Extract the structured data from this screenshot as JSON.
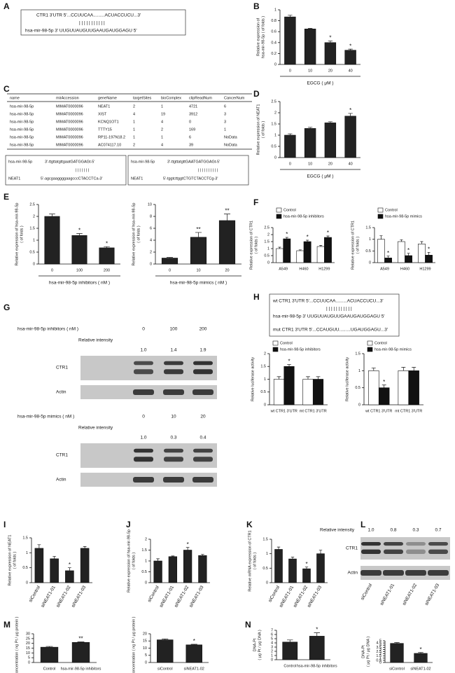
{
  "panel_labels": [
    "A",
    "B",
    "C",
    "D",
    "E",
    "F",
    "G",
    "H",
    "I",
    "J",
    "K",
    "L",
    "M",
    "N"
  ],
  "sequences": {
    "A": {
      "target": "CTR1 3'UTR 5'...CCUUCAA.........ACUACCUCU...3'",
      "pairs": "| | |     | | | | | | | |",
      "mirna": "hsa-mir-98-5p 3' UUGUUAUGUUGAAUGAUGGAGU 5'"
    },
    "C1": {
      "mirna_name": "hsa-mir-98-5p",
      "mirna": "3'-ttgttatgttgaatGATGGAGt-5'",
      "pairs": "| | | | | | |",
      "target_name": "NEAT1",
      "target": "5'-agcgaaggggaagcccCTACCTCa-3'"
    },
    "C2": {
      "mirna_name": "hsa-mir-98-5p",
      "mirna": "3'-ttgttatgttGAATGATGGAGt-5'",
      "pairs": "| |   | | | | | | | |",
      "target_name": "NEAT1",
      "target": "5'-tggtcttggtCTGTCTACCTCg-3'"
    },
    "H": {
      "wt": "wt CTR1 3'UTR 5'...CCUUCAA.........ACUACCUCU...3'",
      "pairs": "| | |     | | | | | | | |",
      "mirna": "hsa-mir-98-5p 3' UUGUUAUGUUGAAUGAUGGAGU 5'",
      "mut": "mut CTR1 3'UTR 5'...CCAUGUU.........UGAUGGAGU...3'"
    }
  },
  "table": {
    "header": [
      "name",
      "mirAccession",
      "geneName",
      "targetSites",
      "bioComplex",
      "clipReadNum",
      "CancerNum"
    ],
    "rows": [
      [
        "hsa-mir-98-5p",
        "MIMAT0000096",
        "NEAT1",
        "2",
        "1",
        "4721",
        "6"
      ],
      [
        "hsa-mir-98-5p",
        "MIMAT0000096",
        "XIST",
        "4",
        "19",
        "3912",
        "3"
      ],
      [
        "hsa-mir-98-5p",
        "MIMAT0000096",
        "KCNQ1OT1",
        "1",
        "4",
        "0",
        "3"
      ],
      [
        "hsa-mir-98-5p",
        "MIMAT0000096",
        "TTTY15",
        "1",
        "2",
        "169",
        "1"
      ],
      [
        "hsa-mir-98-5p",
        "MIMAT0000096",
        "RP11-197N18.2",
        "1",
        "1",
        "6",
        "NoData"
      ],
      [
        "hsa-mir-98-5p",
        "MIMAT0000096",
        "AC074117.10",
        "2",
        "4",
        "39",
        "NoData"
      ]
    ]
  },
  "blots": {
    "G": [
      {
        "treatment": "hsa-mir-98-5p  inhibitors ( nM )",
        "doses": [
          "0",
          "100",
          "200"
        ],
        "intensity_label": "Relative intensity",
        "intensities": [
          "1.0",
          "1.4",
          "1.9"
        ],
        "bands": [
          "CTR1",
          "Actin"
        ]
      },
      {
        "treatment": "hsa-mir-98-5p mimics ( nM )",
        "doses": [
          "0",
          "10",
          "20"
        ],
        "intensity_label": "Relative intensity",
        "intensities": [
          "1.0",
          "0.3",
          "0.4"
        ],
        "bands": [
          "CTR1",
          "Actin"
        ]
      }
    ],
    "L": {
      "intensity_label": "Relative intensity",
      "intensities": [
        "1.0",
        "0.8",
        "0.3",
        "0.7"
      ],
      "bands": [
        "CTR1",
        "Actin"
      ],
      "lanes": [
        "siControl",
        "siNEAT1-01",
        "siNEAT1-02",
        "siNEAT1-03"
      ]
    }
  },
  "chart_data": [
    {
      "type": "bar",
      "ylabel": [
        "Relative expression of",
        "hsa-mir-98-5p ( of folds )"
      ],
      "xlabel": "EGCG ( μM )",
      "categories": [
        "0",
        "10",
        "20",
        "40"
      ],
      "values": [
        0.87,
        0.65,
        0.4,
        0.26
      ],
      "errors": [
        0.03,
        0.01,
        0.03,
        0.02
      ],
      "markers": [
        null,
        null,
        "*",
        "*"
      ],
      "color": "#222222",
      "ylim": [
        0,
        1
      ],
      "yticks": [
        0,
        0.2,
        0.4,
        0.6,
        0.8,
        1
      ]
    },
    {
      "type": "bar",
      "ylabel": [
        "Relative expression of NEAT1",
        "( of folds )"
      ],
      "xlabel": "EGCG ( μM )",
      "categories": [
        "0",
        "10",
        "20",
        "40"
      ],
      "values": [
        1.0,
        1.3,
        1.55,
        1.85
      ],
      "errors": [
        0.06,
        0.05,
        0.05,
        0.12
      ],
      "markers": [
        null,
        null,
        null,
        "*"
      ],
      "color": "#222222",
      "ylim": [
        0,
        2.5
      ],
      "yticks": [
        0,
        0.5,
        1,
        1.5,
        2,
        2.5
      ]
    },
    {
      "type": "bar",
      "ylabel": [
        "Relative expression of hsa-mir-98-5p",
        "( of folds )"
      ],
      "xlabel": "hsa-mir-98-5p  inhibitors ( nM )",
      "categories": [
        "0",
        "100",
        "200"
      ],
      "values": [
        2.0,
        1.2,
        0.68
      ],
      "errors": [
        0.1,
        0.08,
        0.05
      ],
      "markers": [
        null,
        "*",
        "*"
      ],
      "color": "#222222",
      "ylim": [
        0,
        2.5
      ],
      "yticks": [
        0,
        0.5,
        1,
        1.5,
        2,
        2.5
      ]
    },
    {
      "type": "bar",
      "ylabel": [
        "Relative expression of hsa-mir-98-5p",
        "( of folds )"
      ],
      "xlabel": "hsa-mir-98-5p mimics ( nM )",
      "categories": [
        "0",
        "10",
        "20"
      ],
      "values": [
        1.0,
        4.5,
        7.3
      ],
      "errors": [
        0.1,
        0.8,
        1.1
      ],
      "markers": [
        null,
        "**",
        "**"
      ],
      "color": "#222222",
      "ylim": [
        0,
        10
      ],
      "yticks": [
        0,
        2,
        4,
        6,
        8,
        10
      ]
    },
    {
      "type": "bar",
      "ylabel": [
        "Relative expression of CTR1",
        "( of folds )"
      ],
      "categories": [
        "A549",
        "H460",
        "H1299"
      ],
      "legend": "top",
      "series": [
        {
          "name": "Control",
          "color": "#ffffff",
          "values": [
            1.0,
            0.85,
            1.15
          ],
          "errors": [
            0.1,
            0.06,
            0.08
          ],
          "markers": [
            null,
            null,
            null
          ]
        },
        {
          "name": "hsa-mir-98-5p inhibitors",
          "color": "#111111",
          "values": [
            1.7,
            1.5,
            1.8
          ],
          "errors": [
            0.1,
            0.1,
            0.1
          ],
          "markers": [
            "*",
            "*",
            "*"
          ]
        }
      ],
      "ylim": [
        0,
        2.5
      ],
      "yticks": [
        0,
        0.5,
        1,
        1.5,
        2,
        2.5
      ]
    },
    {
      "type": "bar",
      "ylabel": [
        "Relative expression of CTR1",
        "( of folds )"
      ],
      "categories": [
        "A549",
        "H460",
        "H1299"
      ],
      "legend": "top",
      "series": [
        {
          "name": "Control",
          "color": "#ffffff",
          "values": [
            1.0,
            0.9,
            0.8
          ],
          "errors": [
            0.15,
            0.08,
            0.1
          ],
          "markers": [
            null,
            null,
            null
          ]
        },
        {
          "name": "hsa-mir-98-5p mimics",
          "color": "#111111",
          "values": [
            0.2,
            0.3,
            0.32
          ],
          "errors": [
            0.08,
            0.1,
            0.12
          ],
          "markers": [
            "*",
            "*",
            "*"
          ]
        }
      ],
      "ylim": [
        0,
        1.5
      ],
      "yticks": [
        0,
        0.5,
        1,
        1.5
      ]
    },
    {
      "type": "bar",
      "ylabel": [
        "Relative luciferase activity"
      ],
      "categories": [
        "wt CTR1 3'UTR",
        "mt CTR1 3'UTR"
      ],
      "legend": "top",
      "series": [
        {
          "name": "Control",
          "color": "#ffffff",
          "values": [
            1.0,
            1.0
          ],
          "errors": [
            0.1,
            0.1
          ],
          "markers": [
            null,
            null
          ]
        },
        {
          "name": "hsa-mir-98-5p inhibitors",
          "color": "#111111",
          "values": [
            1.5,
            1.0
          ],
          "errors": [
            0.08,
            0.1
          ],
          "markers": [
            "*",
            null
          ]
        }
      ],
      "ylim": [
        0,
        2
      ],
      "yticks": [
        0,
        0.5,
        1,
        1.5,
        2
      ]
    },
    {
      "type": "bar",
      "ylabel": [
        "Relative luciferase activity"
      ],
      "categories": [
        "wt CTR1 3'UTR",
        "mt CTR1 3'UTR"
      ],
      "legend": "top",
      "series": [
        {
          "name": "Control",
          "color": "#ffffff",
          "values": [
            1.0,
            1.0
          ],
          "errors": [
            0.08,
            0.1
          ],
          "markers": [
            null,
            null
          ]
        },
        {
          "name": "hsa-mir-98-5p mimics",
          "color": "#111111",
          "values": [
            0.5,
            1.0
          ],
          "errors": [
            0.08,
            0.1
          ],
          "markers": [
            "*",
            null
          ]
        }
      ],
      "ylim": [
        0,
        1.5
      ],
      "yticks": [
        0,
        0.5,
        1,
        1.5
      ]
    },
    {
      "type": "bar",
      "ylabel": [
        "Relative expression of NEAT1",
        "( of folds )"
      ],
      "categories": [
        "siControl",
        "siNEAT1-01",
        "siNEAT1-02",
        "siNEAT1-03"
      ],
      "values": [
        1.15,
        0.8,
        0.4,
        1.15
      ],
      "errors": [
        0.12,
        0.08,
        0.1,
        0.06
      ],
      "markers": [
        null,
        null,
        "*",
        null
      ],
      "color": "#222222",
      "ylim": [
        0,
        1.5
      ],
      "yticks": [
        0,
        0.5,
        1,
        1.5
      ]
    },
    {
      "type": "bar",
      "ylabel": [
        "Relative expression of hsa-mir-98-5p",
        "( of folds )"
      ],
      "categories": [
        "siControl",
        "siNEAT1-01",
        "siNEAT1-02",
        "siNEAT1-03"
      ],
      "values": [
        1.0,
        1.2,
        1.5,
        1.25
      ],
      "errors": [
        0.1,
        0.03,
        0.12,
        0.05
      ],
      "markers": [
        null,
        null,
        "*",
        null
      ],
      "color": "#222222",
      "ylim": [
        0,
        2
      ],
      "yticks": [
        0,
        0.5,
        1,
        1.5,
        2
      ]
    },
    {
      "type": "bar",
      "ylabel": [
        "Relative mRNA expression of CTR1",
        "( of folds )"
      ],
      "categories": [
        "siControl",
        "siNEAT1-01",
        "siNEAT1-02",
        "siNEAT1-03"
      ],
      "values": [
        1.15,
        0.82,
        0.48,
        1.0
      ],
      "errors": [
        0.08,
        0.06,
        0.06,
        0.12
      ],
      "markers": [
        null,
        null,
        "*",
        null
      ],
      "color": "#222222",
      "ylim": [
        0,
        1.5
      ],
      "yticks": [
        0,
        0.5,
        1,
        1.5
      ]
    },
    {
      "type": "bar",
      "ylabel": [
        "Pt concentration ( ng Pt / μg protein )"
      ],
      "categories": [
        "Control",
        "hsa-mir-98-5p inhibitors"
      ],
      "values": [
        16,
        21
      ],
      "errors": [
        0.8,
        0.5
      ],
      "markers": [
        null,
        "**"
      ],
      "color": "#222222",
      "ylim": [
        0,
        30
      ],
      "yticks": [
        0,
        5,
        10,
        15,
        20,
        25,
        30
      ]
    },
    {
      "type": "bar",
      "ylabel": [
        "Pt concentration ( ng Pt / μg protein )"
      ],
      "categories": [
        "siControl",
        "siNEAT1-02"
      ],
      "values": [
        15.8,
        12.3
      ],
      "errors": [
        0.6,
        0.4
      ],
      "markers": [
        null,
        "*"
      ],
      "color": "#222222",
      "ylim": [
        0,
        20
      ],
      "yticks": [
        0,
        5,
        10,
        15,
        20
      ]
    },
    {
      "type": "bar",
      "ylabel": [
        "DNA-Pt",
        "( μg Pt / μg DNA )"
      ],
      "categories": [
        "Control",
        "hsa-mir-98-5p inhibitors"
      ],
      "values": [
        4.2,
        5.6
      ],
      "errors": [
        0.5,
        0.8
      ],
      "markers": [
        null,
        "*"
      ],
      "color": "#222222",
      "ylim": [
        0,
        7
      ],
      "yticks": [
        0,
        1,
        2,
        3,
        4,
        5,
        6,
        7
      ]
    },
    {
      "type": "bar",
      "ylabel": [
        "DNA-Pt",
        "( μg Pt / μg DNA )"
      ],
      "categories": [
        "siControl",
        "siNEAT1-02"
      ],
      "values": [
        4.4,
        2.1
      ],
      "errors": [
        0.2,
        0.2
      ],
      "markers": [
        null,
        "*"
      ],
      "color": "#222222",
      "ylim": [
        0,
        5
      ],
      "yticks": [
        0,
        0.5,
        1,
        1.5,
        2,
        2.5,
        3,
        3.5,
        4,
        4.5,
        5
      ]
    }
  ]
}
